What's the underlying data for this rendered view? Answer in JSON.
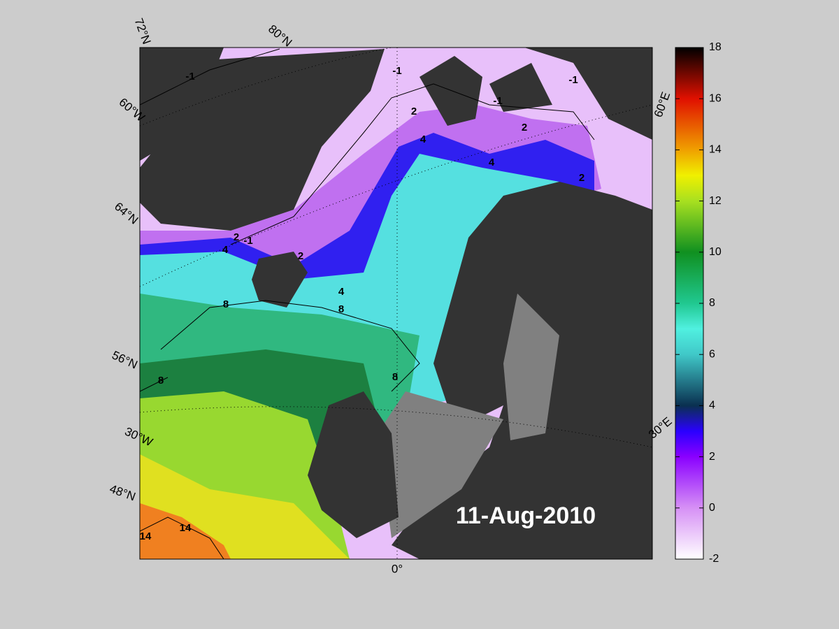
{
  "map": {
    "date": "11-Aug-2010",
    "graticule_labels": [
      "72°N",
      "80°N",
      "60°W",
      "64°N",
      "56°N",
      "30°W",
      "48°N",
      "0°",
      "30°E",
      "60°E"
    ],
    "contour_labels": [
      -1,
      -1,
      -1,
      -1,
      2,
      2,
      2,
      4,
      4,
      2,
      -1,
      4,
      2,
      4,
      8,
      8,
      8,
      8,
      14,
      14
    ]
  },
  "colorbar": {
    "ylim": [
      -2,
      18
    ],
    "yticks": [
      -2,
      0,
      2,
      4,
      6,
      8,
      10,
      12,
      14,
      16,
      18
    ]
  }
}
